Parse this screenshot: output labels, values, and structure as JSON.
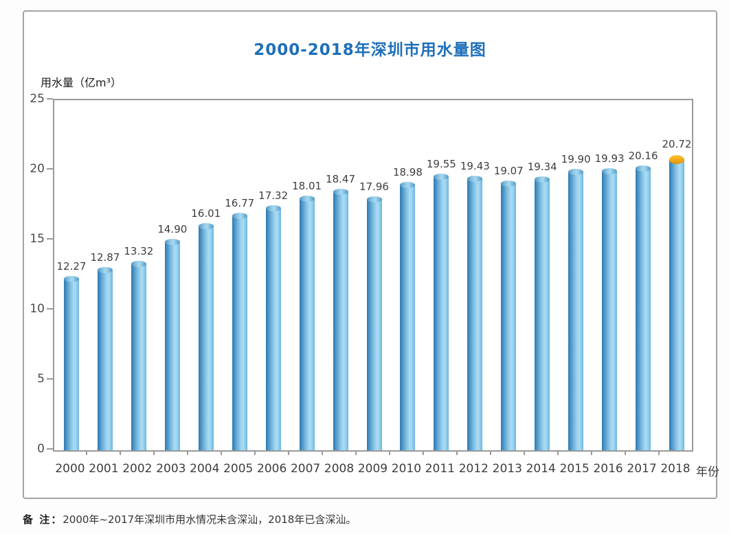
{
  "page": {
    "note_label": "备 注：",
    "note_text": "2000年~2017年深圳市用水情况未含深汕，2018年已含深汕。"
  },
  "colors": {
    "title_blue": "#1e6fba",
    "bar_blue": "#6fb3dc",
    "bar_highlight": "#aadcf4",
    "cap_orange": "#f2a816",
    "border_gray": "#a3a3a3",
    "axis_gray": "#999999"
  },
  "chart_data": {
    "type": "bar",
    "title": "2000-2018年深圳市用水量图",
    "ylabel": "用水量（亿m³）",
    "xlabel": "年份",
    "ylim": [
      0,
      25
    ],
    "y_ticks": [
      0,
      5,
      10,
      15,
      20,
      25
    ],
    "grid": false,
    "legend": "none",
    "categories": [
      "2000",
      "2001",
      "2002",
      "2003",
      "2004",
      "2005",
      "2006",
      "2007",
      "2008",
      "2009",
      "2010",
      "2011",
      "2012",
      "2013",
      "2014",
      "2015",
      "2016",
      "2017",
      "2018"
    ],
    "values": [
      12.27,
      12.87,
      13.32,
      14.9,
      16.01,
      16.77,
      17.32,
      18.01,
      18.47,
      17.96,
      18.98,
      19.55,
      19.43,
      19.07,
      19.34,
      19.9,
      19.93,
      20.16,
      20.72
    ],
    "value_labels": [
      "12.27",
      "12.87",
      "13.32",
      "14.90",
      "16.01",
      "16.77",
      "17.32",
      "18.01",
      "18.47",
      "17.96",
      "18.98",
      "19.55",
      "19.43",
      "19.07",
      "19.34",
      "19.90",
      "19.93",
      "20.16",
      "20.72"
    ],
    "highlight_index": 18,
    "bar_style": "cylinder-3d"
  }
}
